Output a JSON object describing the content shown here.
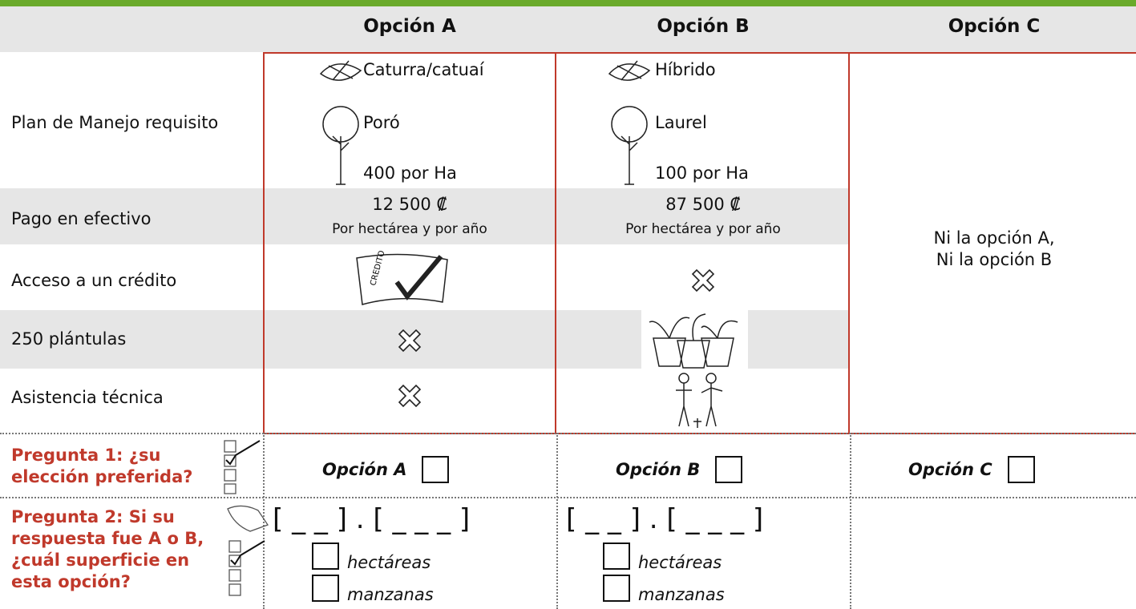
{
  "columns": [
    "Opción A",
    "Opción B",
    "Opción C"
  ],
  "plan": {
    "label": "Plan de Manejo requisito",
    "options": [
      {
        "coffee": "Caturra/catuaí",
        "tree": "Poró",
        "density": "400 por Ha"
      },
      {
        "coffee": "Híbrido",
        "tree": "Laurel",
        "density": "100 por Ha"
      }
    ]
  },
  "payment": {
    "label": "Pago en efectivo",
    "options": [
      {
        "amount": "12 500 ₡",
        "note": "Por hectárea y por año"
      },
      {
        "amount": "87 500 ₡",
        "note": "Por hectárea y por año"
      }
    ]
  },
  "credit": {
    "label": "Acceso a un crédito",
    "flag_text": "CREDITO"
  },
  "seedlings": {
    "label": "250 plántulas"
  },
  "assistance": {
    "label": "Asistencia técnica"
  },
  "option_c": [
    "Ni la opción A,",
    "Ni la opción B"
  ],
  "question1": {
    "label": [
      "Pregunta 1: ¿su",
      "elección preferida?"
    ],
    "choices": [
      "Opción A",
      "Opción B",
      "Opción C"
    ]
  },
  "question2": {
    "label": [
      "Pregunta 2: Si su",
      "respuesta fue A o B,",
      "¿cuál superficie en",
      "esta opción?"
    ],
    "blank": "[ _ _ ] . [ _  _  _ ]",
    "units": [
      "hectáreas",
      "manzanas"
    ]
  }
}
